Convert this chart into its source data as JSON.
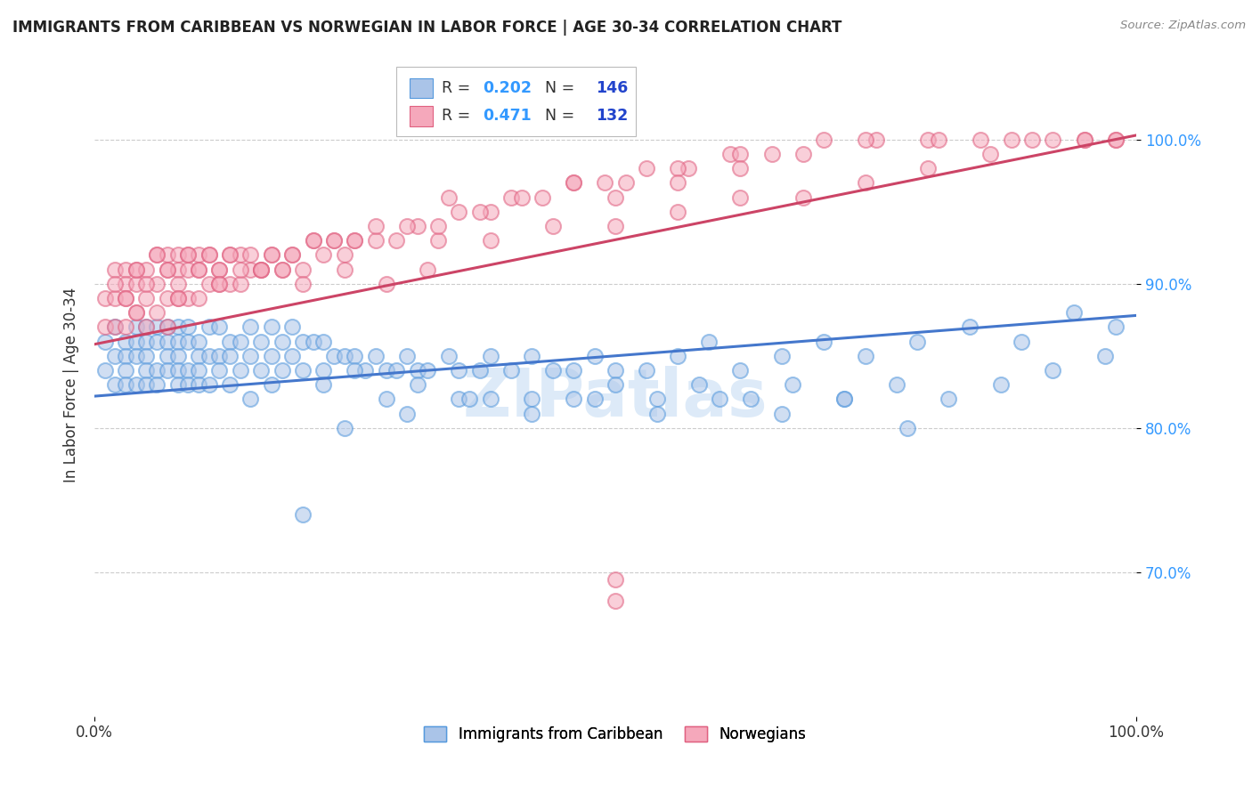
{
  "title": "IMMIGRANTS FROM CARIBBEAN VS NORWEGIAN IN LABOR FORCE | AGE 30-34 CORRELATION CHART",
  "source": "Source: ZipAtlas.com",
  "ylabel": "In Labor Force | Age 30-34",
  "xlim": [
    0.0,
    1.0
  ],
  "ylim": [
    0.6,
    1.06
  ],
  "yticks": [
    0.7,
    0.8,
    0.9,
    1.0
  ],
  "ytick_labels": [
    "70.0%",
    "80.0%",
    "90.0%",
    "100.0%"
  ],
  "xtick_labels": [
    "0.0%",
    "100.0%"
  ],
  "legend_blue_R": "0.202",
  "legend_blue_N": "146",
  "legend_pink_R": "0.471",
  "legend_pink_N": "132",
  "blue_color": "#aac4e8",
  "pink_color": "#f5a8bb",
  "blue_edge_color": "#5599dd",
  "pink_edge_color": "#e06080",
  "blue_line_color": "#4477cc",
  "pink_line_color": "#cc4466",
  "legend_R_color": "#3399ff",
  "legend_N_color": "#2244cc",
  "background_color": "#ffffff",
  "grid_color": "#cccccc",
  "watermark": "ZIPatlas",
  "blue_scatter_x": [
    0.01,
    0.01,
    0.02,
    0.02,
    0.02,
    0.03,
    0.03,
    0.03,
    0.03,
    0.04,
    0.04,
    0.04,
    0.04,
    0.05,
    0.05,
    0.05,
    0.05,
    0.05,
    0.06,
    0.06,
    0.06,
    0.06,
    0.07,
    0.07,
    0.07,
    0.07,
    0.08,
    0.08,
    0.08,
    0.08,
    0.08,
    0.09,
    0.09,
    0.09,
    0.09,
    0.1,
    0.1,
    0.1,
    0.1,
    0.11,
    0.11,
    0.11,
    0.12,
    0.12,
    0.12,
    0.13,
    0.13,
    0.13,
    0.14,
    0.14,
    0.15,
    0.15,
    0.16,
    0.16,
    0.17,
    0.17,
    0.17,
    0.18,
    0.18,
    0.19,
    0.19,
    0.2,
    0.2,
    0.21,
    0.22,
    0.22,
    0.23,
    0.24,
    0.25,
    0.26,
    0.27,
    0.28,
    0.29,
    0.3,
    0.31,
    0.32,
    0.34,
    0.35,
    0.37,
    0.38,
    0.4,
    0.42,
    0.44,
    0.46,
    0.48,
    0.5,
    0.53,
    0.56,
    0.59,
    0.62,
    0.66,
    0.7,
    0.74,
    0.79,
    0.84,
    0.89,
    0.94,
    0.98,
    0.15,
    0.22,
    0.25,
    0.28,
    0.31,
    0.35,
    0.38,
    0.42,
    0.46,
    0.5,
    0.54,
    0.58,
    0.63,
    0.67,
    0.72,
    0.77,
    0.82,
    0.87,
    0.92,
    0.97,
    0.24,
    0.3,
    0.36,
    0.42,
    0.48,
    0.54,
    0.6,
    0.66,
    0.72,
    0.78
  ],
  "blue_scatter_y": [
    0.86,
    0.84,
    0.87,
    0.85,
    0.83,
    0.86,
    0.85,
    0.84,
    0.83,
    0.87,
    0.86,
    0.85,
    0.83,
    0.87,
    0.86,
    0.85,
    0.84,
    0.83,
    0.87,
    0.86,
    0.84,
    0.83,
    0.87,
    0.86,
    0.85,
    0.84,
    0.87,
    0.86,
    0.85,
    0.84,
    0.83,
    0.87,
    0.86,
    0.84,
    0.83,
    0.86,
    0.85,
    0.84,
    0.83,
    0.87,
    0.85,
    0.83,
    0.87,
    0.85,
    0.84,
    0.86,
    0.85,
    0.83,
    0.86,
    0.84,
    0.87,
    0.85,
    0.86,
    0.84,
    0.87,
    0.85,
    0.83,
    0.86,
    0.84,
    0.87,
    0.85,
    0.86,
    0.84,
    0.86,
    0.86,
    0.84,
    0.85,
    0.85,
    0.85,
    0.84,
    0.85,
    0.84,
    0.84,
    0.85,
    0.84,
    0.84,
    0.85,
    0.84,
    0.84,
    0.85,
    0.84,
    0.85,
    0.84,
    0.84,
    0.85,
    0.84,
    0.84,
    0.85,
    0.86,
    0.84,
    0.85,
    0.86,
    0.85,
    0.86,
    0.87,
    0.86,
    0.88,
    0.87,
    0.82,
    0.83,
    0.84,
    0.82,
    0.83,
    0.82,
    0.82,
    0.82,
    0.82,
    0.83,
    0.82,
    0.83,
    0.82,
    0.83,
    0.82,
    0.83,
    0.82,
    0.83,
    0.84,
    0.85,
    0.8,
    0.81,
    0.82,
    0.81,
    0.82,
    0.81,
    0.82,
    0.81,
    0.82,
    0.8
  ],
  "pink_scatter_x": [
    0.01,
    0.01,
    0.02,
    0.02,
    0.02,
    0.03,
    0.03,
    0.03,
    0.03,
    0.04,
    0.04,
    0.04,
    0.05,
    0.05,
    0.05,
    0.06,
    0.06,
    0.06,
    0.07,
    0.07,
    0.07,
    0.07,
    0.08,
    0.08,
    0.08,
    0.09,
    0.09,
    0.09,
    0.1,
    0.1,
    0.1,
    0.11,
    0.11,
    0.12,
    0.12,
    0.13,
    0.13,
    0.14,
    0.14,
    0.15,
    0.16,
    0.17,
    0.18,
    0.19,
    0.2,
    0.21,
    0.22,
    0.23,
    0.24,
    0.25,
    0.27,
    0.29,
    0.31,
    0.33,
    0.35,
    0.38,
    0.4,
    0.43,
    0.46,
    0.49,
    0.53,
    0.57,
    0.61,
    0.65,
    0.7,
    0.75,
    0.8,
    0.85,
    0.9,
    0.95,
    0.98,
    0.02,
    0.03,
    0.04,
    0.05,
    0.06,
    0.07,
    0.08,
    0.09,
    0.1,
    0.11,
    0.12,
    0.13,
    0.14,
    0.15,
    0.16,
    0.17,
    0.18,
    0.19,
    0.21,
    0.23,
    0.25,
    0.27,
    0.3,
    0.33,
    0.37,
    0.41,
    0.46,
    0.51,
    0.56,
    0.62,
    0.68,
    0.74,
    0.81,
    0.88,
    0.95,
    0.34,
    0.5,
    0.56,
    0.62,
    0.38,
    0.44,
    0.5,
    0.56,
    0.62,
    0.68,
    0.74,
    0.8,
    0.86,
    0.92,
    0.98,
    0.04,
    0.08,
    0.12,
    0.16,
    0.2,
    0.24,
    0.28,
    0.32
  ],
  "pink_scatter_y": [
    0.89,
    0.87,
    0.91,
    0.89,
    0.87,
    0.91,
    0.9,
    0.89,
    0.87,
    0.91,
    0.9,
    0.88,
    0.91,
    0.89,
    0.87,
    0.92,
    0.9,
    0.88,
    0.92,
    0.91,
    0.89,
    0.87,
    0.92,
    0.91,
    0.89,
    0.92,
    0.91,
    0.89,
    0.92,
    0.91,
    0.89,
    0.92,
    0.9,
    0.91,
    0.9,
    0.92,
    0.9,
    0.92,
    0.9,
    0.91,
    0.91,
    0.92,
    0.91,
    0.92,
    0.91,
    0.93,
    0.92,
    0.93,
    0.92,
    0.93,
    0.93,
    0.93,
    0.94,
    0.93,
    0.95,
    0.95,
    0.96,
    0.96,
    0.97,
    0.97,
    0.98,
    0.98,
    0.99,
    0.99,
    1.0,
    1.0,
    1.0,
    1.0,
    1.0,
    1.0,
    1.0,
    0.9,
    0.89,
    0.91,
    0.9,
    0.92,
    0.91,
    0.9,
    0.92,
    0.91,
    0.92,
    0.91,
    0.92,
    0.91,
    0.92,
    0.91,
    0.92,
    0.91,
    0.92,
    0.93,
    0.93,
    0.93,
    0.94,
    0.94,
    0.94,
    0.95,
    0.96,
    0.97,
    0.97,
    0.98,
    0.99,
    0.99,
    1.0,
    1.0,
    1.0,
    1.0,
    0.96,
    0.96,
    0.97,
    0.98,
    0.93,
    0.94,
    0.94,
    0.95,
    0.96,
    0.96,
    0.97,
    0.98,
    0.99,
    1.0,
    1.0,
    0.88,
    0.89,
    0.9,
    0.91,
    0.9,
    0.91,
    0.9,
    0.91
  ],
  "blue_trend_x": [
    0.0,
    1.0
  ],
  "blue_trend_y": [
    0.822,
    0.878
  ],
  "pink_trend_x": [
    0.0,
    1.0
  ],
  "pink_trend_y": [
    0.858,
    1.003
  ],
  "blue_outlier_x": [
    0.2
  ],
  "blue_outlier_y": [
    0.74
  ],
  "pink_outlier1_x": [
    0.5
  ],
  "pink_outlier1_y": [
    0.695
  ],
  "pink_outlier2_x": [
    0.5
  ],
  "pink_outlier2_y": [
    0.68
  ]
}
